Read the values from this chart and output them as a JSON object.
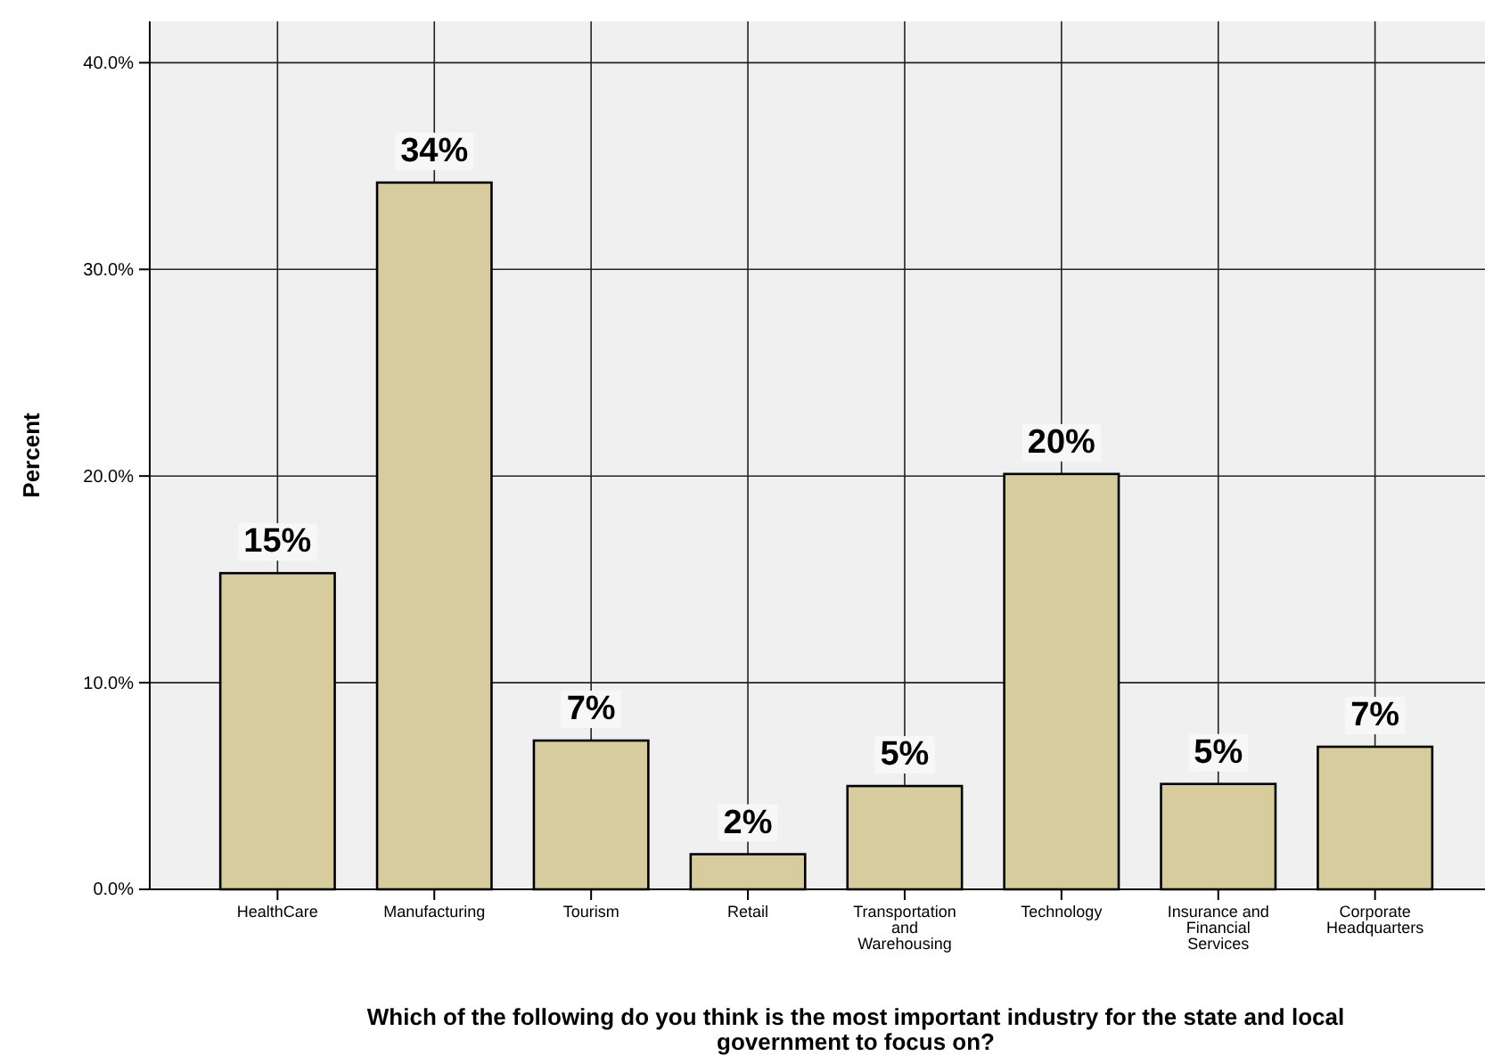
{
  "chart_data": {
    "type": "bar",
    "xlabel": "Which of the following do you think is the most important industry for the state and local government to focus on?",
    "ylabel": "Percent",
    "categories": [
      "HealthCare",
      "Manufacturing",
      "Tourism",
      "Retail",
      "Transportation and Warehousing",
      "Technology",
      "Insurance and Financial Services",
      "Corporate Headquarters"
    ],
    "values": [
      15.3,
      34.2,
      7.2,
      1.7,
      5.0,
      20.1,
      5.1,
      6.9
    ],
    "value_labels": [
      "15%",
      "34%",
      "7%",
      "2%",
      "5%",
      "20%",
      "5%",
      "7%"
    ],
    "color": "#d6cc9e",
    "ylim": [
      0,
      42
    ],
    "yticks": [
      {
        "value": 0,
        "label": "0.0%"
      },
      {
        "value": 10,
        "label": "10.0%"
      },
      {
        "value": 20,
        "label": "20.0%"
      },
      {
        "value": 30,
        "label": "30.0%"
      },
      {
        "value": 40,
        "label": "40.0%"
      }
    ],
    "grid": true
  }
}
